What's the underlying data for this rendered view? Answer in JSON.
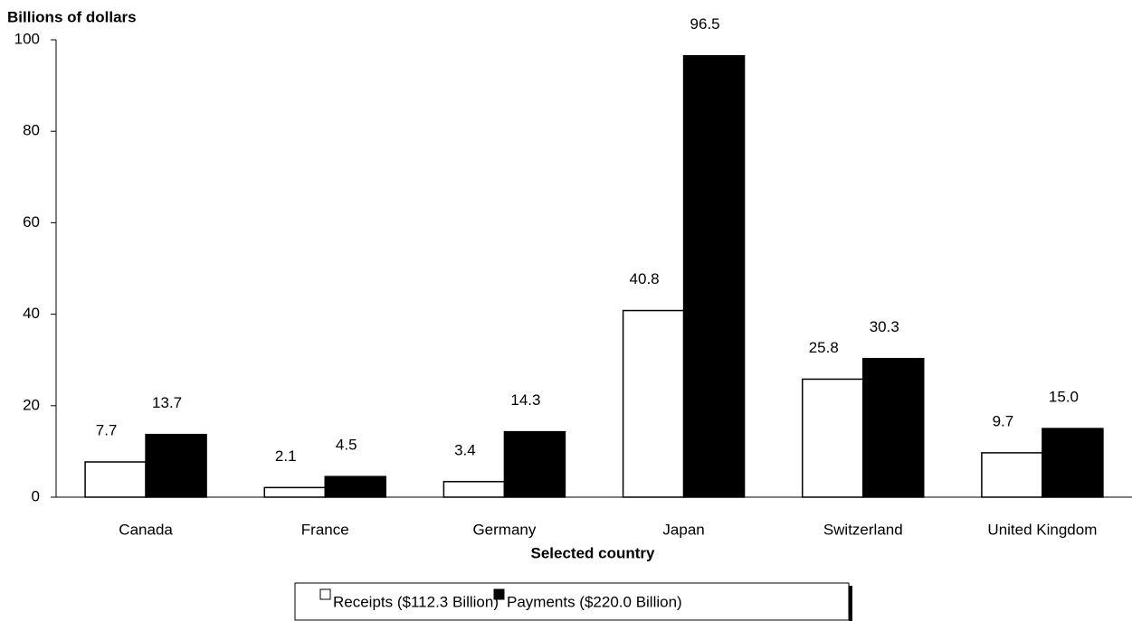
{
  "chart_data": {
    "type": "bar",
    "y_label": "Billions of dollars",
    "x_label": "Selected country",
    "categories": [
      "Canada",
      "France",
      "Germany",
      "Japan",
      "Switzerland",
      "United Kingdom"
    ],
    "series": [
      {
        "name": "Receipts ($112.3 Billion)",
        "color": "#ffffff",
        "values": [
          7.7,
          2.1,
          3.4,
          40.8,
          25.8,
          9.7
        ]
      },
      {
        "name": "Payments ($220.0 Billion)",
        "color": "#000000",
        "values": [
          13.7,
          4.5,
          14.3,
          96.5,
          30.3,
          15.0
        ],
        "value_labels": [
          "13.7",
          "4.5",
          "14.3",
          "96.5",
          "30.3",
          "15.0"
        ]
      }
    ],
    "ylim": [
      0,
      100
    ],
    "yticks": [
      0,
      20,
      40,
      60,
      80,
      100
    ],
    "legend": "bottom"
  }
}
